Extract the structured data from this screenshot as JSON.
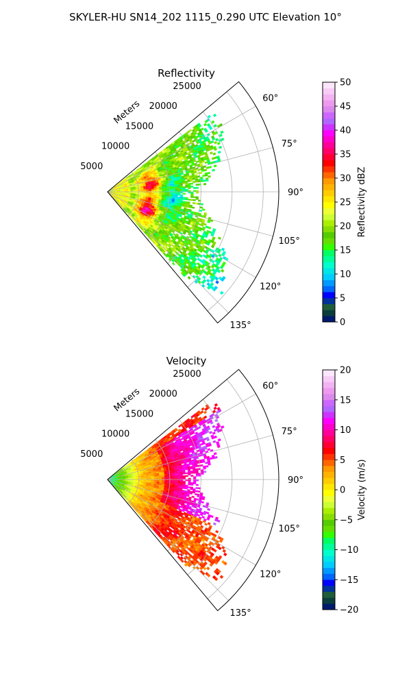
{
  "title": "SKYLER-HU  SN14_202  1115_0.290 UTC Elevation 10°",
  "chart_data": [
    {
      "type": "heatmap",
      "projection": "polar-sector",
      "title": "Reflectivity",
      "radial_label": "Meters",
      "range_rings_m": [
        5000,
        10000,
        15000,
        20000,
        25000
      ],
      "range_ring_labels": [
        "5000",
        "10000",
        "15000",
        "20000",
        "25000"
      ],
      "azimuth_range_deg": [
        50,
        140
      ],
      "azimuth_ticks_deg": [
        60,
        75,
        90,
        105,
        120,
        135
      ],
      "azimuth_tick_labels": [
        "60°",
        "75°",
        "90°",
        "105°",
        "120°",
        "135°"
      ],
      "max_range_m": 27500,
      "grid": true,
      "colorbar": {
        "label": "Reflectivity dBZ",
        "min": 0,
        "max": 50,
        "ticks": [
          0,
          5,
          10,
          15,
          20,
          25,
          30,
          35,
          40,
          45,
          50
        ],
        "tick_labels": [
          "0",
          "5",
          "10",
          "15",
          "20",
          "25",
          "30",
          "35",
          "40",
          "45",
          "50"
        ],
        "colors": [
          "#001a6e",
          "#0b3d3d",
          "#1f5c3a",
          "#003399",
          "#0000ff",
          "#0066ff",
          "#0099ff",
          "#00ccff",
          "#00e5e5",
          "#00ffcc",
          "#00ff99",
          "#00ff66",
          "#33ff00",
          "#66dd00",
          "#55cc00",
          "#88dd00",
          "#aaee00",
          "#ccff33",
          "#eeff33",
          "#ffff00",
          "#ffe600",
          "#ffcc00",
          "#ffb300",
          "#ff9900",
          "#ff6600",
          "#ff3300",
          "#ff0000",
          "#ff0033",
          "#ff0066",
          "#ff0099",
          "#ff00cc",
          "#ff00ff",
          "#cc33ff",
          "#b366ff",
          "#cc66ff",
          "#dd88ee",
          "#ee99ee",
          "#f3b3f3",
          "#f7ccf7",
          "#fbe6fb"
        ]
      },
      "field_description": "echo extends to about 21000 m near 55-60°, 15000 m at 90°, 24000 m at 130°; highs 35-40 dBZ near 7000 m at 80° and 112°"
    },
    {
      "type": "heatmap",
      "projection": "polar-sector",
      "title": "Velocity",
      "radial_label": "Meters",
      "range_rings_m": [
        5000,
        10000,
        15000,
        20000,
        25000
      ],
      "range_ring_labels": [
        "5000",
        "10000",
        "15000",
        "20000",
        "25000"
      ],
      "azimuth_range_deg": [
        50,
        140
      ],
      "azimuth_ticks_deg": [
        60,
        75,
        90,
        105,
        120,
        135
      ],
      "azimuth_tick_labels": [
        "60°",
        "75°",
        "90°",
        "105°",
        "120°",
        "135°"
      ],
      "max_range_m": 27500,
      "grid": true,
      "colorbar": {
        "label": "Velocity (m/s)",
        "min": -20,
        "max": 20,
        "ticks": [
          -20,
          -15,
          -10,
          -5,
          0,
          5,
          10,
          15,
          20
        ],
        "tick_labels": [
          "−20",
          "−15",
          "−10",
          "−5",
          "0",
          "5",
          "10",
          "15",
          "20"
        ],
        "colors": [
          "#001a6e",
          "#0b3d3d",
          "#1f5c3a",
          "#003399",
          "#0000ff",
          "#0066ff",
          "#0099ff",
          "#00ccff",
          "#00e5e5",
          "#00ffcc",
          "#00ff99",
          "#00ff66",
          "#33ff00",
          "#66dd00",
          "#55cc00",
          "#88dd00",
          "#aaee00",
          "#ccff33",
          "#eeff33",
          "#ffff00",
          "#ffe600",
          "#ffcc00",
          "#ffb300",
          "#ff9900",
          "#ff6600",
          "#ff3300",
          "#ff0000",
          "#ff0033",
          "#ff0066",
          "#ff0099",
          "#ff00cc",
          "#ff00ff",
          "#cc33ff",
          "#b366ff",
          "#cc66ff",
          "#dd88ee",
          "#ee99ee",
          "#f3b3f3",
          "#f7ccf7",
          "#fbe6fb"
        ]
      },
      "field_description": "near-radar approx -10 m/s, 0 to 5 m/s mid-range, 8 to 12 m/s far-range at 60-110°"
    }
  ]
}
